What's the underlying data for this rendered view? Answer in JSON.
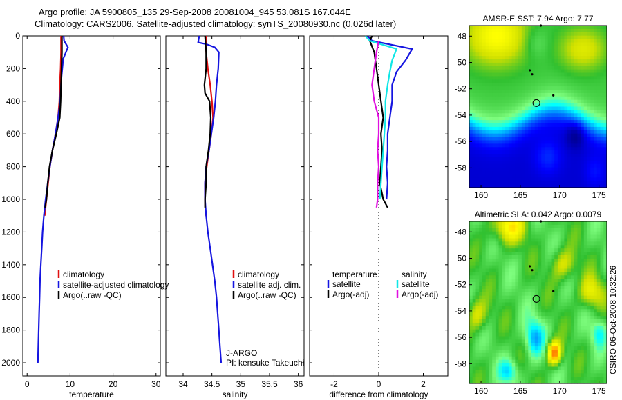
{
  "header": {
    "line1": "Argo profile: JA 5900805_135 29-Sep-2008 20081004_945 53.081S 167.044E",
    "line2": "Climatology: CARS2006. Satellite-adjusted climatology: synTS_20080930.nc (0.026d later)"
  },
  "side_label": "CSIRO 06-Oct-2008 10:32:26",
  "colors": {
    "red": "#e01010",
    "blue": "#1515e0",
    "black": "#000000",
    "cyan": "#10e6e6",
    "magenta": "#e010e0"
  },
  "chart_data": [
    {
      "type": "line",
      "id": "temperature",
      "xlabel": "temperature",
      "xlim": [
        -1,
        31
      ],
      "ylim": [
        2080,
        0
      ],
      "xticks": [
        0,
        10,
        20,
        30
      ],
      "yticks": [
        0,
        200,
        400,
        600,
        800,
        1000,
        1200,
        1400,
        1600,
        1800,
        2000
      ],
      "legend": [
        "climatology",
        "satellite-adjusted climatology",
        "Argo(..raw -QC)"
      ],
      "series": [
        {
          "name": "climatology",
          "color": "red",
          "points": [
            [
              7.9,
              0
            ],
            [
              7.9,
              100
            ],
            [
              7.8,
              200
            ],
            [
              7.6,
              300
            ],
            [
              7.5,
              400
            ],
            [
              7.2,
              500
            ],
            [
              6.6,
              600
            ],
            [
              5.9,
              700
            ],
            [
              5.3,
              800
            ],
            [
              4.9,
              900
            ],
            [
              4.5,
              1000
            ],
            [
              4.1,
              1100
            ]
          ]
        },
        {
          "name": "satellite-adjusted climatology",
          "color": "blue",
          "points": [
            [
              8.5,
              0
            ],
            [
              8.6,
              30
            ],
            [
              9.5,
              70
            ],
            [
              8.4,
              140
            ],
            [
              8.0,
              250
            ],
            [
              7.7,
              400
            ],
            [
              7.2,
              500
            ],
            [
              6.6,
              600
            ],
            [
              5.9,
              700
            ],
            [
              5.3,
              800
            ],
            [
              4.8,
              900
            ],
            [
              4.3,
              1000
            ],
            [
              3.9,
              1100
            ],
            [
              3.6,
              1200
            ],
            [
              3.4,
              1300
            ],
            [
              3.2,
              1400
            ],
            [
              3.0,
              1500
            ],
            [
              2.9,
              1600
            ],
            [
              2.8,
              1700
            ],
            [
              2.7,
              1800
            ],
            [
              2.6,
              1900
            ],
            [
              2.5,
              2000
            ]
          ]
        },
        {
          "name": "Argo(..raw -QC)",
          "color": "black",
          "points": [
            [
              8.1,
              0
            ],
            [
              8.1,
              100
            ],
            [
              8.0,
              200
            ],
            [
              7.9,
              300
            ],
            [
              7.8,
              400
            ],
            [
              7.6,
              500
            ],
            [
              6.8,
              600
            ],
            [
              5.9,
              700
            ],
            [
              5.2,
              800
            ],
            [
              4.8,
              900
            ],
            [
              4.5,
              1000
            ],
            [
              4.2,
              1050
            ]
          ]
        }
      ]
    },
    {
      "type": "line",
      "id": "salinity",
      "xlabel": "salinity",
      "xlim": [
        33.7,
        36.1
      ],
      "ylim": [
        2080,
        0
      ],
      "xticks": [
        34,
        34.5,
        35,
        35.5,
        36
      ],
      "legend": [
        "climatology",
        "satellite adj. clim.",
        "Argo(..raw -QC)"
      ],
      "annotation": [
        "J-ARGO",
        "PI: kensuke Takeuchi"
      ],
      "series": [
        {
          "name": "climatology",
          "color": "red",
          "points": [
            [
              34.4,
              0
            ],
            [
              34.4,
              100
            ],
            [
              34.43,
              200
            ],
            [
              34.47,
              300
            ],
            [
              34.5,
              400
            ],
            [
              34.52,
              500
            ],
            [
              34.49,
              600
            ],
            [
              34.45,
              700
            ],
            [
              34.41,
              800
            ],
            [
              34.38,
              900
            ],
            [
              34.38,
              1000
            ],
            [
              34.39,
              1100
            ]
          ]
        },
        {
          "name": "satellite adj. clim.",
          "color": "blue",
          "points": [
            [
              34.28,
              0
            ],
            [
              34.26,
              40
            ],
            [
              34.4,
              50
            ],
            [
              34.55,
              70
            ],
            [
              34.62,
              100
            ],
            [
              34.61,
              200
            ],
            [
              34.58,
              300
            ],
            [
              34.56,
              400
            ],
            [
              34.53,
              500
            ],
            [
              34.49,
              600
            ],
            [
              34.45,
              700
            ],
            [
              34.4,
              800
            ],
            [
              34.38,
              900
            ],
            [
              34.38,
              1000
            ],
            [
              34.4,
              1100
            ],
            [
              34.43,
              1200
            ],
            [
              34.47,
              1300
            ],
            [
              34.51,
              1400
            ],
            [
              34.55,
              1500
            ],
            [
              34.58,
              1600
            ],
            [
              34.6,
              1700
            ],
            [
              34.62,
              1800
            ],
            [
              34.64,
              1900
            ],
            [
              34.66,
              2000
            ]
          ]
        },
        {
          "name": "Argo(..raw -QC)",
          "color": "black",
          "points": [
            [
              34.38,
              0
            ],
            [
              34.4,
              100
            ],
            [
              34.4,
              200
            ],
            [
              34.37,
              300
            ],
            [
              34.38,
              350
            ],
            [
              34.46,
              400
            ],
            [
              34.48,
              500
            ],
            [
              34.47,
              600
            ],
            [
              34.44,
              700
            ],
            [
              34.4,
              800
            ],
            [
              34.4,
              900
            ],
            [
              34.38,
              1000
            ],
            [
              34.38,
              1050
            ]
          ]
        }
      ]
    },
    {
      "type": "line",
      "id": "difference",
      "xlabel": "difference from climatology",
      "xlim": [
        -3.1,
        3.1
      ],
      "ylim": [
        2080,
        0
      ],
      "xticks": [
        -2,
        0,
        2
      ],
      "legend_temperature": {
        "title": "temperature",
        "entries": [
          "satellite",
          "Argo(-adj)"
        ]
      },
      "legend_salinity": {
        "title": "salinity",
        "entries": [
          "satellite",
          "Argo(-adj)"
        ]
      },
      "series": [
        {
          "name": "temperature satellite",
          "color": "blue",
          "points": [
            [
              -0.5,
              0
            ],
            [
              -0.3,
              30
            ],
            [
              1.5,
              80
            ],
            [
              1.2,
              150
            ],
            [
              0.8,
              220
            ],
            [
              0.6,
              300
            ],
            [
              0.6,
              400
            ],
            [
              0.5,
              500
            ],
            [
              0.4,
              600
            ],
            [
              0.4,
              700
            ],
            [
              0.35,
              800
            ],
            [
              0.4,
              900
            ],
            [
              0.35,
              1000
            ]
          ]
        },
        {
          "name": "temperature Argo(-adj)",
          "color": "black",
          "points": [
            [
              -0.3,
              0
            ],
            [
              -0.4,
              30
            ],
            [
              -0.2,
              100
            ],
            [
              -0.1,
              200
            ],
            [
              0.0,
              300
            ],
            [
              0.1,
              400
            ],
            [
              0.2,
              500
            ],
            [
              0.1,
              600
            ],
            [
              0.15,
              700
            ],
            [
              0.1,
              800
            ],
            [
              0.05,
              900
            ],
            [
              0.2,
              1000
            ],
            [
              0.4,
              1050
            ]
          ]
        },
        {
          "name": "salinity satellite",
          "color": "cyan",
          "points": [
            [
              -0.6,
              0
            ],
            [
              -0.4,
              30
            ],
            [
              0.8,
              80
            ],
            [
              0.6,
              150
            ],
            [
              0.5,
              220
            ],
            [
              0.4,
              300
            ],
            [
              0.3,
              400
            ],
            [
              0.3,
              500
            ],
            [
              0.25,
              600
            ],
            [
              0.2,
              700
            ],
            [
              0.15,
              800
            ],
            [
              0.1,
              900
            ],
            [
              0.05,
              1000
            ]
          ]
        },
        {
          "name": "salinity Argo(-adj)",
          "color": "magenta",
          "points": [
            [
              0.0,
              30
            ],
            [
              -0.1,
              100
            ],
            [
              -0.2,
              200
            ],
            [
              -0.3,
              300
            ],
            [
              -0.2,
              400
            ],
            [
              0.0,
              500
            ],
            [
              0.0,
              600
            ],
            [
              -0.05,
              700
            ],
            [
              0.0,
              800
            ],
            [
              -0.05,
              900
            ],
            [
              -0.05,
              1000
            ],
            [
              -0.1,
              1050
            ]
          ]
        }
      ]
    },
    {
      "type": "heatmap",
      "id": "sst",
      "title": "AMSR-E SST: 7.94  Argo: 7.77",
      "xlim": [
        158.5,
        176
      ],
      "ylim": [
        -59.5,
        -47.2
      ],
      "xticks": [
        160,
        165,
        170,
        175
      ],
      "yticks": [
        -48,
        -50,
        -52,
        -54,
        -56,
        -58
      ],
      "float_marker": [
        167.04,
        -53.08
      ]
    },
    {
      "type": "heatmap",
      "id": "sla",
      "title": "Altimetric SLA: 0.042  Argo: 0.0079",
      "xlim": [
        158.5,
        176
      ],
      "ylim": [
        -59.5,
        -47.2
      ],
      "xticks": [
        160,
        165,
        170,
        175
      ],
      "yticks": [
        -48,
        -50,
        -52,
        -54,
        -56,
        -58
      ],
      "float_marker": [
        167.04,
        -53.08
      ]
    }
  ]
}
